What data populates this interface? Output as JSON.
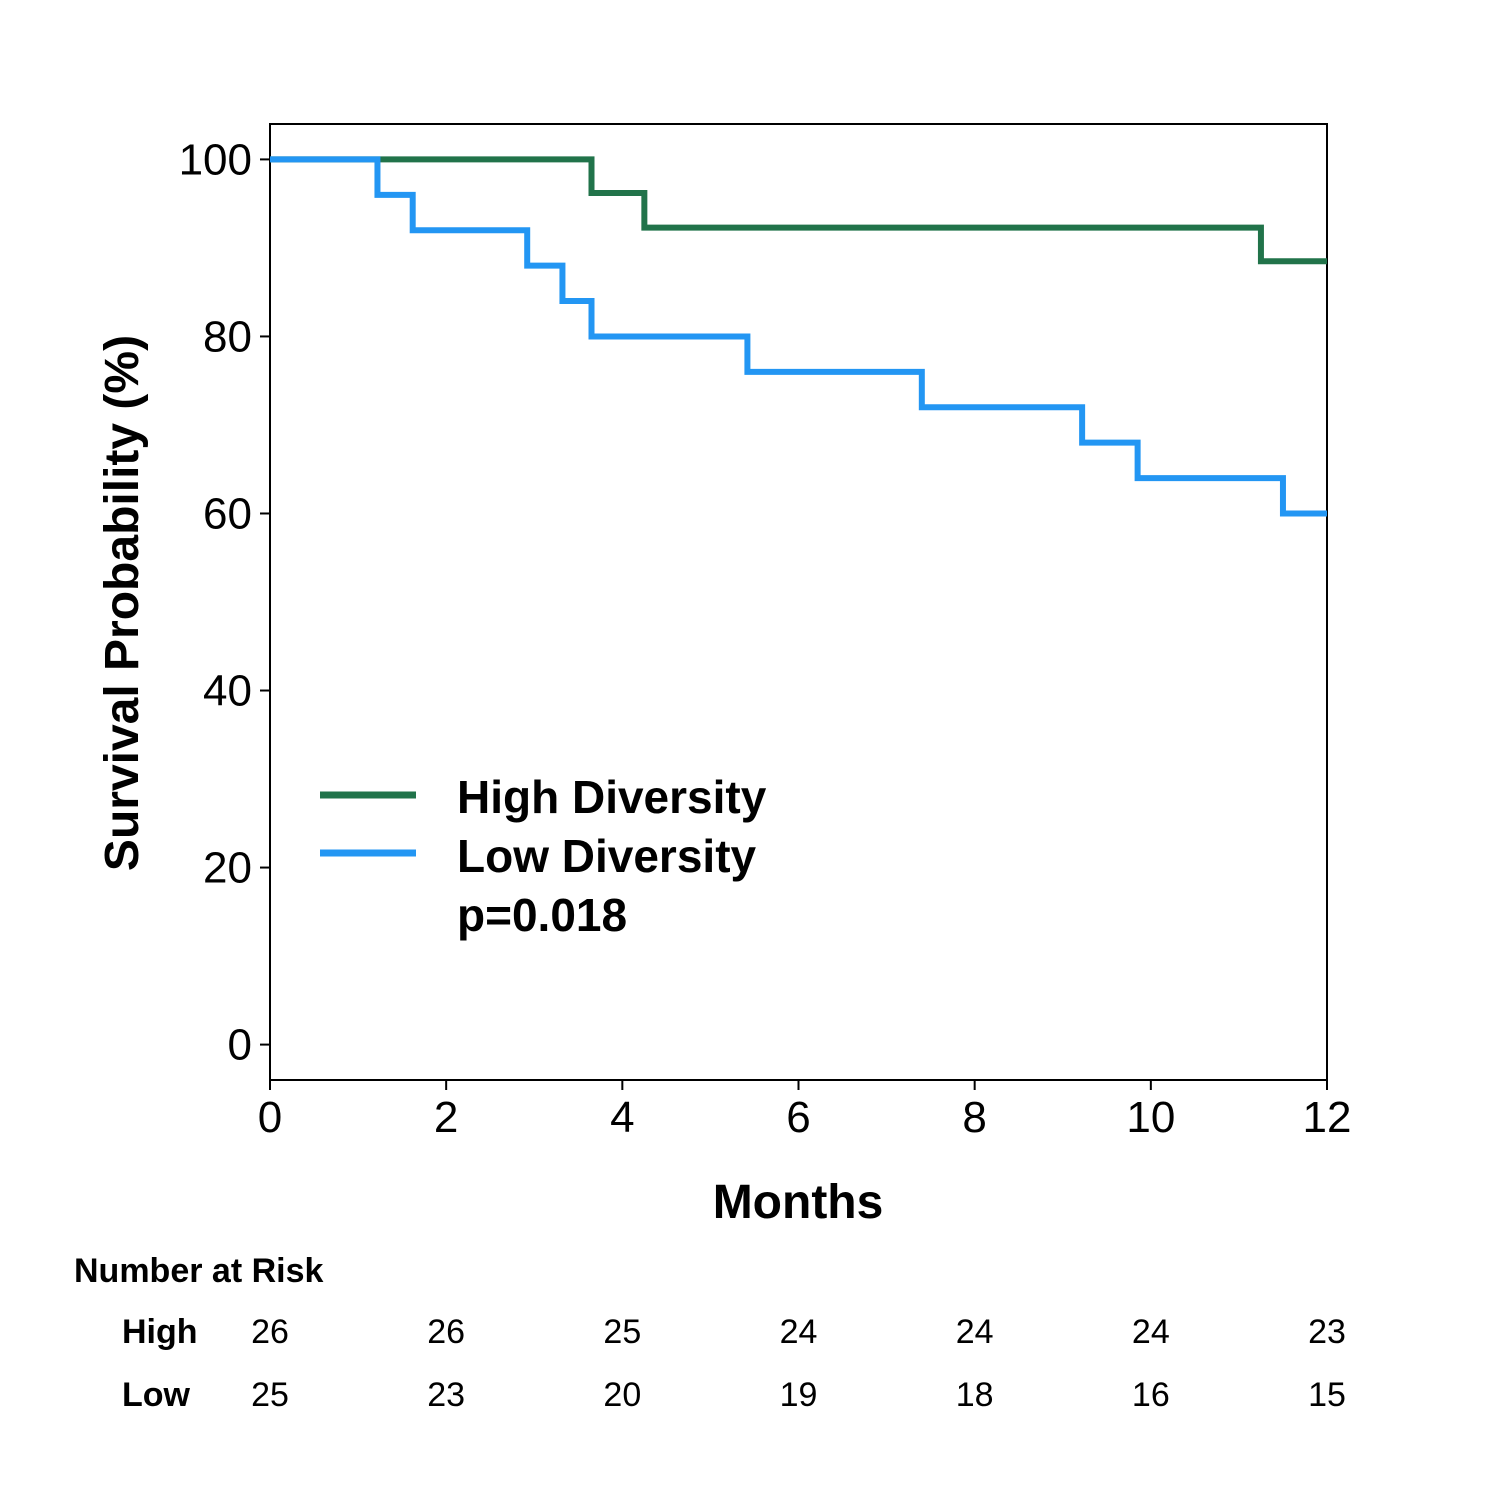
{
  "chart_data": {
    "type": "line",
    "step": true,
    "xlabel": "Months",
    "ylabel": "Survival Probability (%)",
    "xlim": [
      0,
      12
    ],
    "ylim": [
      -4,
      104
    ],
    "xticks": [
      0,
      2,
      4,
      6,
      8,
      10,
      12
    ],
    "yticks": [
      0,
      20,
      40,
      60,
      80,
      100
    ],
    "x_tick_labels": [
      "0",
      "2",
      "4",
      "6",
      "8",
      "10",
      "12"
    ],
    "y_tick_labels": [
      "0",
      "20",
      "40",
      "60",
      "80",
      "100"
    ],
    "grid": false,
    "legend_position": "lower-left",
    "series": [
      {
        "name": "High Diversity",
        "color": "#21734a",
        "x": [
          0,
          3.65,
          4.25,
          11.25,
          12
        ],
        "y": [
          100,
          96.2,
          92.3,
          88.5,
          88.5
        ]
      },
      {
        "name": "Low Diversity",
        "color": "#2396f3",
        "x": [
          0,
          1.22,
          1.62,
          2.92,
          3.32,
          3.65,
          5.42,
          7.4,
          9.22,
          9.85,
          11.5,
          12
        ],
        "y": [
          100,
          96,
          92,
          88,
          84,
          80,
          76,
          72,
          68,
          64,
          60,
          60
        ]
      }
    ],
    "annotation": "p=0.018"
  },
  "risk_table": {
    "title": "Number at Risk",
    "times": [
      0,
      2,
      4,
      6,
      8,
      10,
      12
    ],
    "rows": [
      {
        "label": "High",
        "values": [
          "26",
          "26",
          "25",
          "24",
          "24",
          "24",
          "23"
        ]
      },
      {
        "label": "Low",
        "values": [
          "25",
          "23",
          "20",
          "19",
          "18",
          "16",
          "15"
        ]
      }
    ]
  }
}
